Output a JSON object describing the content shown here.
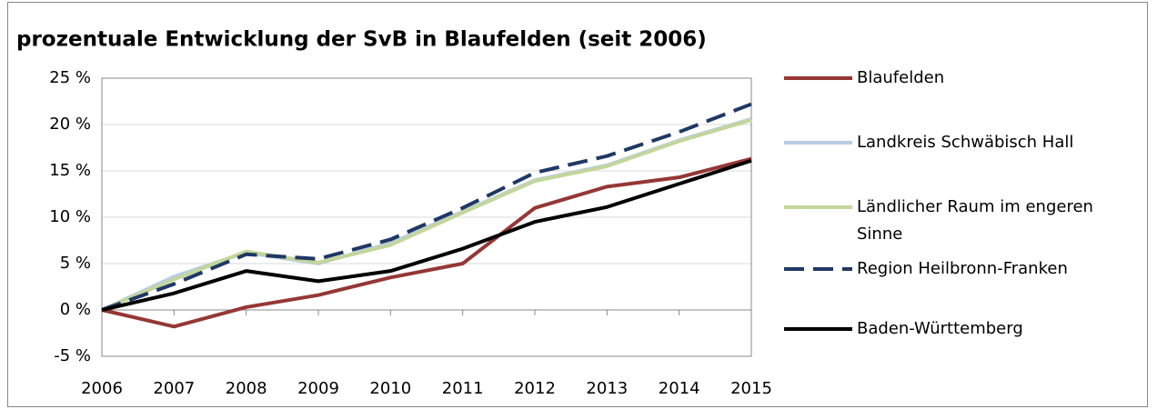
{
  "chart_data": {
    "type": "line",
    "title": "prozentuale Entwicklung der SvB in Blaufelden (seit 2006)",
    "categories": [
      "2006",
      "2007",
      "2008",
      "2009",
      "2010",
      "2011",
      "2012",
      "2013",
      "2014",
      "2015"
    ],
    "series": [
      {
        "name": "Blaufelden",
        "color": "#953735",
        "values": [
          0,
          -1.8,
          0.3,
          1.6,
          3.5,
          5.0,
          11.0,
          13.3,
          14.3,
          16.3
        ]
      },
      {
        "name": "Landkreis Schwäbisch Hall",
        "color": "#b9cde5",
        "values": [
          0,
          3.6,
          6.2,
          5.0,
          7.2,
          10.6,
          14.0,
          15.6,
          18.3,
          20.6
        ]
      },
      {
        "name": "Ländlicher Raum im engeren Sinne",
        "color": "#c3d69b",
        "values": [
          0,
          3.3,
          6.3,
          5.1,
          7.0,
          10.5,
          13.9,
          15.5,
          18.2,
          20.5
        ]
      },
      {
        "name": "Region Heilbronn-Franken",
        "color": "#1f3864",
        "dashed": true,
        "values": [
          0,
          2.8,
          6.0,
          5.5,
          7.6,
          11.0,
          14.8,
          16.6,
          19.2,
          22.2
        ]
      },
      {
        "name": "Baden-Württemberg",
        "color": "#000000",
        "values": [
          0,
          1.8,
          4.2,
          3.1,
          4.2,
          6.6,
          9.5,
          11.1,
          13.6,
          16.1
        ]
      }
    ],
    "ylim": [
      -5,
      25
    ],
    "yticks": [
      {
        "value": -5,
        "label": "-5 %"
      },
      {
        "value": 0,
        "label": "0 %"
      },
      {
        "value": 5,
        "label": "5 %"
      },
      {
        "value": 10,
        "label": "10 %"
      },
      {
        "value": 15,
        "label": "15 %"
      },
      {
        "value": 20,
        "label": "20 %"
      },
      {
        "value": 25,
        "label": "25 %"
      }
    ],
    "grid": true,
    "legend": "right"
  }
}
